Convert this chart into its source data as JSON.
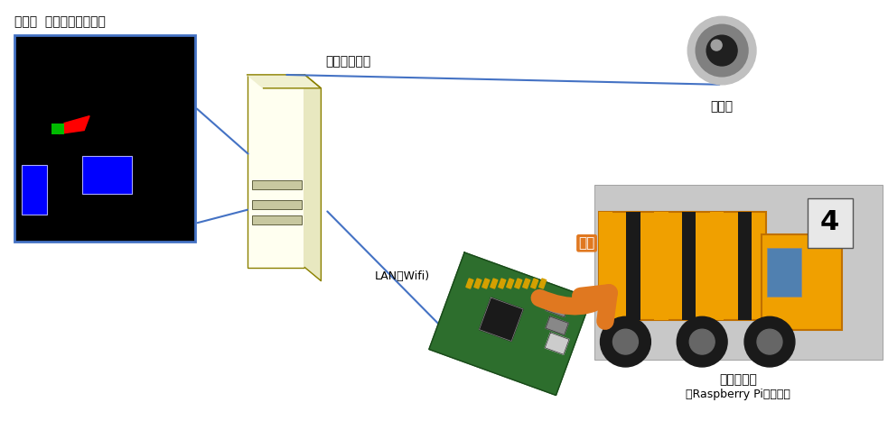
{
  "bg_color": "#ffffff",
  "simulator_label": "ダンプ  移動シミュレータ",
  "computer_label": "コンピュータ",
  "camera_label": "カメラ",
  "lan_label": "LAN（Wifi)",
  "dump_label": "ダンプカー",
  "rpi_label": "（Raspberry Pi　搭載）",
  "tosai_label": "搭載",
  "line_color": "#4472c4",
  "arrow_color": "#e07820",
  "sim_bg": "#000000",
  "sim_border": "#4472c4",
  "comp_front": "#fffff0",
  "comp_side": "#e8e8c0",
  "comp_top": "#f0f0d0",
  "comp_edge": "#8b8000"
}
